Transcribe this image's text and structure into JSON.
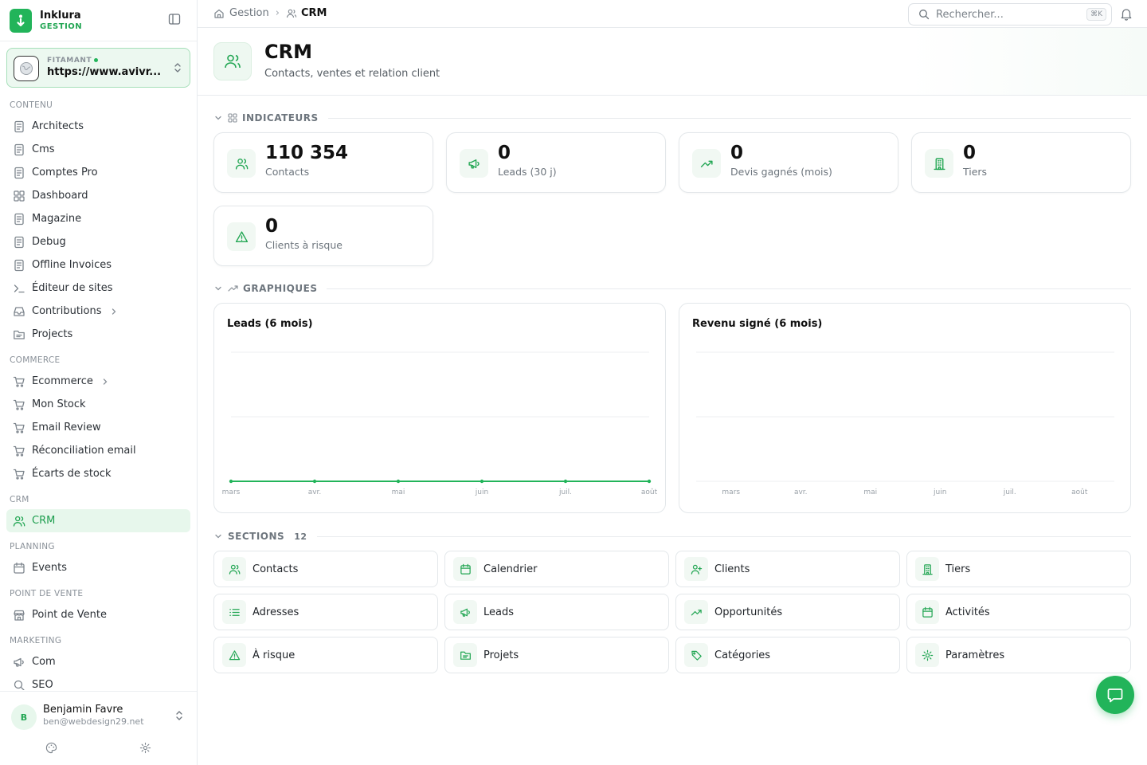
{
  "brand": {
    "name": "Inklura",
    "sub": "GESTION"
  },
  "site": {
    "label": "FITAMANT",
    "url": "https://www.avivr..."
  },
  "nav": {
    "sections": [
      {
        "title": "CONTENU",
        "items": [
          {
            "label": "Architects",
            "icon": "document-icon"
          },
          {
            "label": "Cms",
            "icon": "document-icon"
          },
          {
            "label": "Comptes Pro",
            "icon": "document-icon"
          },
          {
            "label": "Dashboard",
            "icon": "grid-icon"
          },
          {
            "label": "Magazine",
            "icon": "document-icon"
          },
          {
            "label": "Debug",
            "icon": "document-icon"
          },
          {
            "label": "Offline Invoices",
            "icon": "document-icon"
          },
          {
            "label": "Éditeur de sites",
            "icon": "terminal-icon"
          },
          {
            "label": "Contributions",
            "icon": "inbox-icon",
            "chevron": true
          },
          {
            "label": "Projects",
            "icon": "folder-icon"
          }
        ]
      },
      {
        "title": "COMMERCE",
        "items": [
          {
            "label": "Ecommerce",
            "icon": "cart-icon",
            "chevron": true
          },
          {
            "label": "Mon Stock",
            "icon": "cart-icon"
          },
          {
            "label": "Email Review",
            "icon": "cart-icon"
          },
          {
            "label": "Réconciliation email",
            "icon": "cart-icon"
          },
          {
            "label": "Écarts de stock",
            "icon": "cart-icon"
          }
        ]
      },
      {
        "title": "CRM",
        "items": [
          {
            "label": "CRM",
            "icon": "users-icon",
            "active": true
          }
        ]
      },
      {
        "title": "PLANNING",
        "items": [
          {
            "label": "Events",
            "icon": "calendar-icon"
          }
        ]
      },
      {
        "title": "POINT DE VENTE",
        "items": [
          {
            "label": "Point de Vente",
            "icon": "store-icon"
          }
        ]
      },
      {
        "title": "MARKETING",
        "items": [
          {
            "label": "Com",
            "icon": "megaphone-icon"
          },
          {
            "label": "SEO",
            "icon": "search-icon"
          }
        ]
      }
    ]
  },
  "user": {
    "initial": "B",
    "name": "Benjamin Favre",
    "email": "ben@webdesign29.net"
  },
  "topbar": {
    "breadcrumb": {
      "home": "Gestion",
      "current": "CRM"
    },
    "search_placeholder": "Rechercher...",
    "shortcut": "⌘K"
  },
  "header": {
    "title": "CRM",
    "subtitle": "Contacts, ventes et relation client"
  },
  "indicators": {
    "title": "INDICATEURS",
    "cards": [
      {
        "value": "110 354",
        "label": "Contacts",
        "icon": "users-icon"
      },
      {
        "value": "0",
        "label": "Leads (30 j)",
        "icon": "megaphone-icon"
      },
      {
        "value": "0",
        "label": "Devis gagnés (mois)",
        "icon": "trending-up-icon"
      },
      {
        "value": "0",
        "label": "Tiers",
        "icon": "building-icon"
      },
      {
        "value": "0",
        "label": "Clients à risque",
        "icon": "warning-icon"
      }
    ]
  },
  "charts_section": {
    "title": "GRAPHIQUES"
  },
  "chart_data": [
    {
      "type": "line",
      "title": "Leads (6 mois)",
      "categories": [
        "mars",
        "avr.",
        "mai",
        "juin",
        "juil.",
        "août"
      ],
      "series": [
        {
          "values": [
            0,
            0,
            0,
            0,
            0,
            0
          ]
        }
      ],
      "color": "#22b45a",
      "grid": true
    },
    {
      "type": "bar",
      "title": "Revenu signé (6 mois)",
      "categories": [
        "mars",
        "avr.",
        "mai",
        "juin",
        "juil.",
        "août"
      ],
      "series": [
        {
          "values": [
            0,
            0,
            0,
            0,
            0,
            0
          ]
        }
      ],
      "color": "#22b45a",
      "grid": true
    }
  ],
  "sections": {
    "title": "SECTIONS",
    "count": "12",
    "tiles": [
      {
        "label": "Contacts",
        "icon": "users-icon"
      },
      {
        "label": "Calendrier",
        "icon": "calendar-icon"
      },
      {
        "label": "Clients",
        "icon": "user-plus-icon"
      },
      {
        "label": "Tiers",
        "icon": "building-icon"
      },
      {
        "label": "Adresses",
        "icon": "list-icon"
      },
      {
        "label": "Leads",
        "icon": "megaphone-icon"
      },
      {
        "label": "Opportunités",
        "icon": "trending-up-icon"
      },
      {
        "label": "Activités",
        "icon": "calendar-icon"
      },
      {
        "label": "À risque",
        "icon": "warning-icon"
      },
      {
        "label": "Projets",
        "icon": "folder-icon"
      },
      {
        "label": "Catégories",
        "icon": "tag-icon"
      },
      {
        "label": "Paramètres",
        "icon": "gear-icon"
      }
    ]
  },
  "colors": {
    "accent": "#22b45a",
    "accent_soft": "#e7f7ec"
  }
}
